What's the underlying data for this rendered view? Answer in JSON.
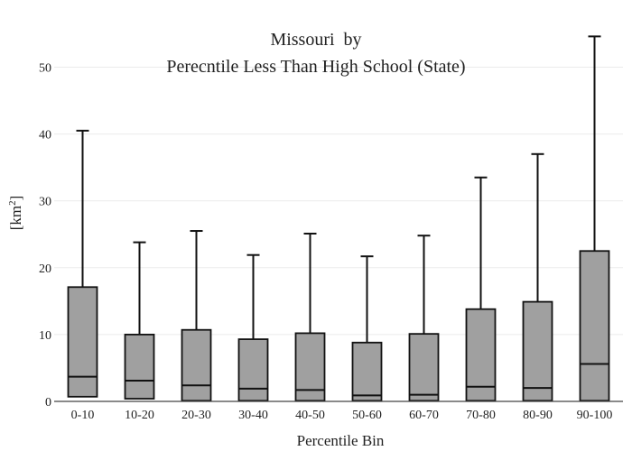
{
  "chart_data": {
    "type": "box",
    "title_line1": "Missouri  by",
    "title_line2": "Perecntile Less Than High School (State)",
    "xlabel": "Percentile Bin",
    "ylabel_base": "[km",
    "ylabel_sup": "2",
    "ylabel_end": "]",
    "ylim": [
      0,
      56
    ],
    "yticks": [
      0,
      10,
      20,
      30,
      40,
      50
    ],
    "grid": true,
    "legend": "none",
    "box_color": "#a0a0a0",
    "categories": [
      "0-10",
      "10-20",
      "20-30",
      "30-40",
      "40-50",
      "50-60",
      "60-70",
      "70-80",
      "80-90",
      "90-100"
    ],
    "boxes": [
      {
        "min": 0.7,
        "q1": 0.7,
        "median": 3.7,
        "q3": 17.1,
        "max": 40.5
      },
      {
        "min": 0.4,
        "q1": 0.4,
        "median": 3.1,
        "q3": 10.0,
        "max": 23.8
      },
      {
        "min": 0.1,
        "q1": 0.1,
        "median": 2.4,
        "q3": 10.7,
        "max": 25.5
      },
      {
        "min": 0.1,
        "q1": 0.1,
        "median": 1.9,
        "q3": 9.3,
        "max": 21.9
      },
      {
        "min": 0.1,
        "q1": 0.1,
        "median": 1.7,
        "q3": 10.2,
        "max": 25.1
      },
      {
        "min": 0.1,
        "q1": 0.1,
        "median": 0.9,
        "q3": 8.8,
        "max": 21.7
      },
      {
        "min": 0.1,
        "q1": 0.1,
        "median": 1.0,
        "q3": 10.1,
        "max": 24.8
      },
      {
        "min": 0.1,
        "q1": 0.1,
        "median": 2.2,
        "q3": 13.8,
        "max": 33.5
      },
      {
        "min": 0.1,
        "q1": 0.1,
        "median": 2.0,
        "q3": 14.9,
        "max": 37.0
      },
      {
        "min": 0.1,
        "q1": 0.1,
        "median": 5.6,
        "q3": 22.5,
        "max": 54.6
      }
    ]
  }
}
